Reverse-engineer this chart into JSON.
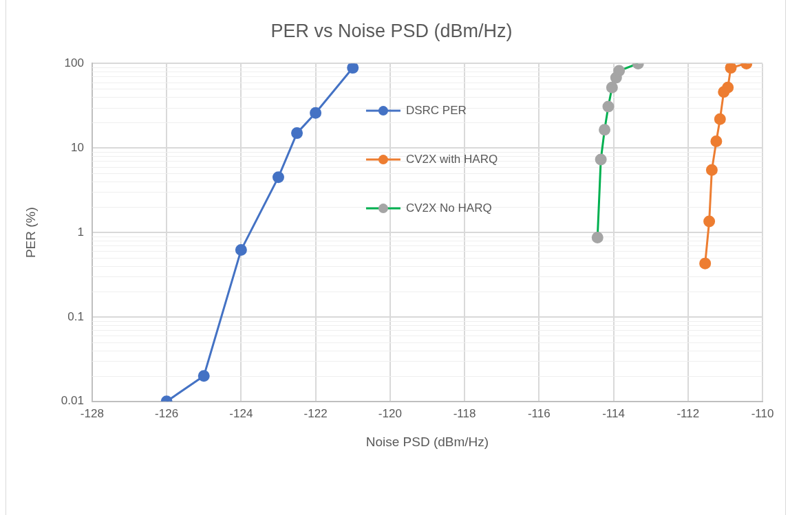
{
  "chart_data": {
    "type": "line",
    "title": "PER vs Noise PSD (dBm/Hz)",
    "xlabel": "Noise PSD (dBm/Hz)",
    "ylabel": "PER (%)",
    "xlim": [
      -128,
      -110
    ],
    "xticks": [
      -128,
      -126,
      -124,
      -122,
      -120,
      -118,
      -116,
      -114,
      -112,
      -110
    ],
    "ylim": [
      0.01,
      100
    ],
    "yticks": [
      0.01,
      0.1,
      1,
      10,
      100
    ],
    "log": "y",
    "grid": true,
    "legend": "center",
    "marker": "circle",
    "line_style": "solid",
    "series": [
      {
        "name": "DSRC PER",
        "color": "#4472c4",
        "x": [
          -126,
          -125,
          -124,
          -123,
          -122.5,
          -122,
          -121
        ],
        "values": [
          0.01,
          0.02,
          0.62,
          4.5,
          15,
          26,
          89
        ]
      },
      {
        "name": "CV2X with HARQ",
        "color": "#ed7d31",
        "x": [
          -111.54,
          -111.43,
          -111.36,
          -111.24,
          -111.14,
          -111.04,
          -110.93,
          -110.85,
          -110.43
        ],
        "values": [
          0.43,
          1.35,
          5.5,
          12,
          22,
          46,
          52,
          89,
          100
        ]
      },
      {
        "name": "CV2X No HARQ",
        "color": "#00b050",
        "colors": [
          "#a5a5a5",
          "#a5a5a5",
          "#a5a5a5",
          "#a5a5a5",
          "#a5a5a5",
          "#a5a5a5",
          "#a5a5a5",
          "#a5a5a5"
        ],
        "x": [
          -114.43,
          -114.34,
          -114.24,
          -114.14,
          -114.04,
          -113.93,
          -113.85,
          -113.34
        ],
        "values": [
          0.87,
          7.3,
          16.4,
          31,
          52,
          68,
          82,
          100
        ]
      }
    ]
  }
}
